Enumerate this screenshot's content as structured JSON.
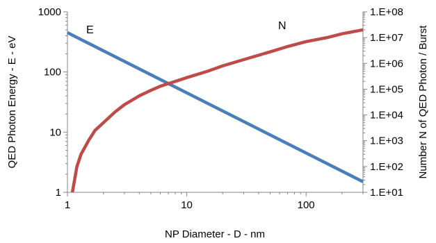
{
  "chart_data": {
    "type": "line",
    "xlabel": "NP Diameter - D - nm",
    "ylabel": "QED Photon Energy  - E - eV",
    "y2label": "Number N of QED Photon / Burst",
    "x_scale": "log",
    "y_scale": "log",
    "y2_scale": "log",
    "xlim": [
      1,
      300
    ],
    "ylim": [
      1,
      1000
    ],
    "y2lim": [
      10,
      100000000
    ],
    "x_ticks": [
      1,
      10,
      100
    ],
    "x_tick_labels": [
      "1",
      "10",
      "100"
    ],
    "y_ticks": [
      1,
      10,
      100,
      1000
    ],
    "y_tick_labels": [
      "1",
      "10",
      "100",
      "1000"
    ],
    "y2_ticks": [
      10,
      100,
      1000,
      10000,
      100000,
      1000000,
      10000000,
      100000000
    ],
    "y2_tick_labels": [
      "1.E+01",
      "1.E+02",
      "1.E+03",
      "1.E+04",
      "1.E+05",
      "1.E+06",
      "1.E+07",
      "1.E+08"
    ],
    "grid": false,
    "legend": "none",
    "series": [
      {
        "name": "E",
        "axis": "left",
        "color": "#4a7ebb",
        "x": [
          1,
          300
        ],
        "y": [
          450,
          1.5
        ]
      },
      {
        "name": "N",
        "axis": "right",
        "color": "#be4b48",
        "x": [
          1.1,
          1.2,
          1.3,
          1.5,
          1.7,
          2,
          2.5,
          3,
          4,
          5,
          6,
          8,
          10,
          15,
          20,
          30,
          50,
          70,
          100,
          150,
          200,
          300
        ],
        "y": [
          10,
          100,
          300,
          1000,
          2500,
          5000,
          13000,
          25000,
          55000,
          90000,
          130000,
          200000,
          280000,
          500000,
          800000,
          1400000,
          2800000,
          4500000,
          7000000,
          10000000,
          14000000,
          20000000
        ]
      }
    ]
  }
}
